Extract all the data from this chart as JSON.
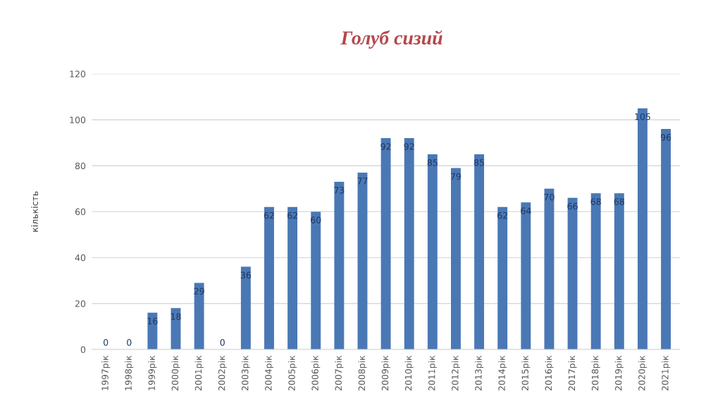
{
  "chart_data": {
    "type": "bar",
    "title": "Голуб сизий",
    "ylabel": "кількість",
    "categories": [
      "1997рік",
      "1998рік",
      "1999рік",
      "2000рік",
      "2001рік",
      "2002рік",
      "2003рік",
      "2004рік",
      "2005рік",
      "2006рік",
      "2007рік",
      "2008рік",
      "2009рік",
      "2010рік",
      "2011рік",
      "2012рік",
      "2013рік",
      "2014рік",
      "2015рік",
      "2016рік",
      "2017рік",
      "2018рік",
      "2019рік",
      "2020рік",
      "2021рік"
    ],
    "series": [
      {
        "color": "#4a78b5",
        "values": [
          0,
          0,
          16,
          18,
          29,
          0,
          36,
          62,
          62,
          60,
          73,
          77,
          92,
          92,
          85,
          79,
          85,
          62,
          64,
          70,
          66,
          68,
          68,
          105,
          96
        ]
      }
    ],
    "ylim": [
      0,
      120
    ],
    "yticks": [
      0,
      20,
      40,
      60,
      80,
      100,
      120
    ],
    "grid": "y",
    "data_labels": true
  }
}
